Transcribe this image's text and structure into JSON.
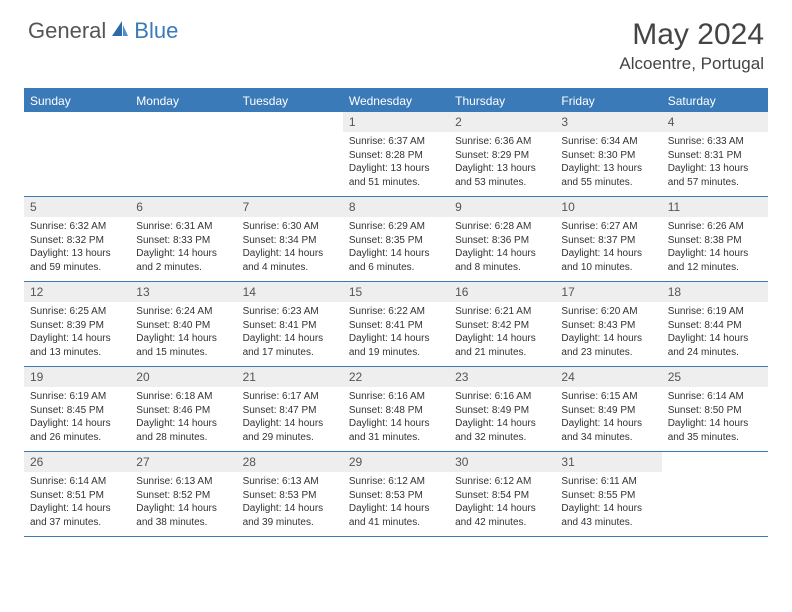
{
  "brand": {
    "part1": "General",
    "part2": "Blue"
  },
  "title": "May 2024",
  "location": "Alcoentre, Portugal",
  "colors": {
    "accent": "#3a7ab8",
    "header_bg": "#3a7ab8",
    "daynum_bg": "#eeeeee",
    "text": "#333333",
    "background": "#ffffff"
  },
  "day_headers": [
    "Sunday",
    "Monday",
    "Tuesday",
    "Wednesday",
    "Thursday",
    "Friday",
    "Saturday"
  ],
  "weeks": [
    [
      {
        "empty": true
      },
      {
        "empty": true
      },
      {
        "empty": true
      },
      {
        "num": "1",
        "sunrise": "Sunrise: 6:37 AM",
        "sunset": "Sunset: 8:28 PM",
        "daylight": "Daylight: 13 hours and 51 minutes."
      },
      {
        "num": "2",
        "sunrise": "Sunrise: 6:36 AM",
        "sunset": "Sunset: 8:29 PM",
        "daylight": "Daylight: 13 hours and 53 minutes."
      },
      {
        "num": "3",
        "sunrise": "Sunrise: 6:34 AM",
        "sunset": "Sunset: 8:30 PM",
        "daylight": "Daylight: 13 hours and 55 minutes."
      },
      {
        "num": "4",
        "sunrise": "Sunrise: 6:33 AM",
        "sunset": "Sunset: 8:31 PM",
        "daylight": "Daylight: 13 hours and 57 minutes."
      }
    ],
    [
      {
        "num": "5",
        "sunrise": "Sunrise: 6:32 AM",
        "sunset": "Sunset: 8:32 PM",
        "daylight": "Daylight: 13 hours and 59 minutes."
      },
      {
        "num": "6",
        "sunrise": "Sunrise: 6:31 AM",
        "sunset": "Sunset: 8:33 PM",
        "daylight": "Daylight: 14 hours and 2 minutes."
      },
      {
        "num": "7",
        "sunrise": "Sunrise: 6:30 AM",
        "sunset": "Sunset: 8:34 PM",
        "daylight": "Daylight: 14 hours and 4 minutes."
      },
      {
        "num": "8",
        "sunrise": "Sunrise: 6:29 AM",
        "sunset": "Sunset: 8:35 PM",
        "daylight": "Daylight: 14 hours and 6 minutes."
      },
      {
        "num": "9",
        "sunrise": "Sunrise: 6:28 AM",
        "sunset": "Sunset: 8:36 PM",
        "daylight": "Daylight: 14 hours and 8 minutes."
      },
      {
        "num": "10",
        "sunrise": "Sunrise: 6:27 AM",
        "sunset": "Sunset: 8:37 PM",
        "daylight": "Daylight: 14 hours and 10 minutes."
      },
      {
        "num": "11",
        "sunrise": "Sunrise: 6:26 AM",
        "sunset": "Sunset: 8:38 PM",
        "daylight": "Daylight: 14 hours and 12 minutes."
      }
    ],
    [
      {
        "num": "12",
        "sunrise": "Sunrise: 6:25 AM",
        "sunset": "Sunset: 8:39 PM",
        "daylight": "Daylight: 14 hours and 13 minutes."
      },
      {
        "num": "13",
        "sunrise": "Sunrise: 6:24 AM",
        "sunset": "Sunset: 8:40 PM",
        "daylight": "Daylight: 14 hours and 15 minutes."
      },
      {
        "num": "14",
        "sunrise": "Sunrise: 6:23 AM",
        "sunset": "Sunset: 8:41 PM",
        "daylight": "Daylight: 14 hours and 17 minutes."
      },
      {
        "num": "15",
        "sunrise": "Sunrise: 6:22 AM",
        "sunset": "Sunset: 8:41 PM",
        "daylight": "Daylight: 14 hours and 19 minutes."
      },
      {
        "num": "16",
        "sunrise": "Sunrise: 6:21 AM",
        "sunset": "Sunset: 8:42 PM",
        "daylight": "Daylight: 14 hours and 21 minutes."
      },
      {
        "num": "17",
        "sunrise": "Sunrise: 6:20 AM",
        "sunset": "Sunset: 8:43 PM",
        "daylight": "Daylight: 14 hours and 23 minutes."
      },
      {
        "num": "18",
        "sunrise": "Sunrise: 6:19 AM",
        "sunset": "Sunset: 8:44 PM",
        "daylight": "Daylight: 14 hours and 24 minutes."
      }
    ],
    [
      {
        "num": "19",
        "sunrise": "Sunrise: 6:19 AM",
        "sunset": "Sunset: 8:45 PM",
        "daylight": "Daylight: 14 hours and 26 minutes."
      },
      {
        "num": "20",
        "sunrise": "Sunrise: 6:18 AM",
        "sunset": "Sunset: 8:46 PM",
        "daylight": "Daylight: 14 hours and 28 minutes."
      },
      {
        "num": "21",
        "sunrise": "Sunrise: 6:17 AM",
        "sunset": "Sunset: 8:47 PM",
        "daylight": "Daylight: 14 hours and 29 minutes."
      },
      {
        "num": "22",
        "sunrise": "Sunrise: 6:16 AM",
        "sunset": "Sunset: 8:48 PM",
        "daylight": "Daylight: 14 hours and 31 minutes."
      },
      {
        "num": "23",
        "sunrise": "Sunrise: 6:16 AM",
        "sunset": "Sunset: 8:49 PM",
        "daylight": "Daylight: 14 hours and 32 minutes."
      },
      {
        "num": "24",
        "sunrise": "Sunrise: 6:15 AM",
        "sunset": "Sunset: 8:49 PM",
        "daylight": "Daylight: 14 hours and 34 minutes."
      },
      {
        "num": "25",
        "sunrise": "Sunrise: 6:14 AM",
        "sunset": "Sunset: 8:50 PM",
        "daylight": "Daylight: 14 hours and 35 minutes."
      }
    ],
    [
      {
        "num": "26",
        "sunrise": "Sunrise: 6:14 AM",
        "sunset": "Sunset: 8:51 PM",
        "daylight": "Daylight: 14 hours and 37 minutes."
      },
      {
        "num": "27",
        "sunrise": "Sunrise: 6:13 AM",
        "sunset": "Sunset: 8:52 PM",
        "daylight": "Daylight: 14 hours and 38 minutes."
      },
      {
        "num": "28",
        "sunrise": "Sunrise: 6:13 AM",
        "sunset": "Sunset: 8:53 PM",
        "daylight": "Daylight: 14 hours and 39 minutes."
      },
      {
        "num": "29",
        "sunrise": "Sunrise: 6:12 AM",
        "sunset": "Sunset: 8:53 PM",
        "daylight": "Daylight: 14 hours and 41 minutes."
      },
      {
        "num": "30",
        "sunrise": "Sunrise: 6:12 AM",
        "sunset": "Sunset: 8:54 PM",
        "daylight": "Daylight: 14 hours and 42 minutes."
      },
      {
        "num": "31",
        "sunrise": "Sunrise: 6:11 AM",
        "sunset": "Sunset: 8:55 PM",
        "daylight": "Daylight: 14 hours and 43 minutes."
      },
      {
        "empty": true
      }
    ]
  ]
}
